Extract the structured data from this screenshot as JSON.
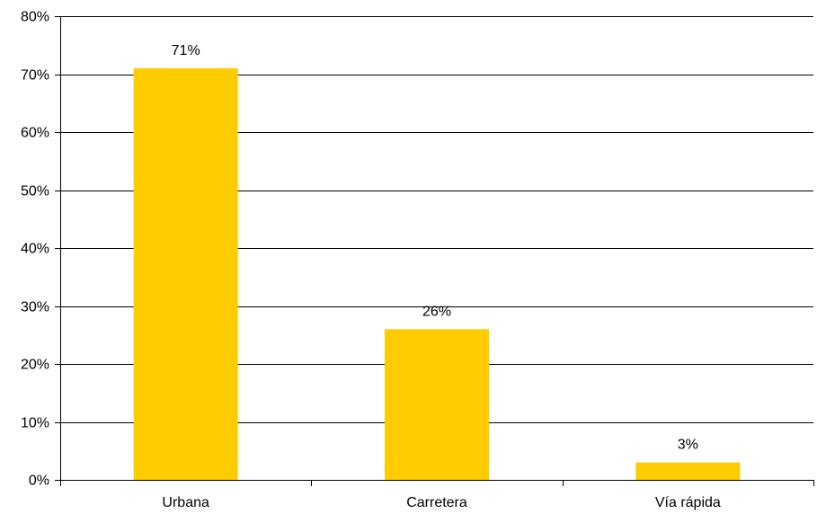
{
  "chart_data": {
    "type": "bar",
    "categories": [
      "Urbana",
      "Carretera",
      "Vía rápida"
    ],
    "values": [
      71,
      26,
      3
    ],
    "data_labels": [
      "71%",
      "26%",
      "3%"
    ],
    "title": "",
    "xlabel": "",
    "ylabel": "",
    "ylim": [
      0,
      80
    ],
    "yticks": [
      0,
      10,
      20,
      30,
      40,
      50,
      60,
      70,
      80
    ],
    "ytick_labels": [
      "0%",
      "10%",
      "20%",
      "30%",
      "40%",
      "50%",
      "60%",
      "70%",
      "80%"
    ],
    "grid": true,
    "legend": "none",
    "colors": {
      "bar": "#FFCC00",
      "grid": "#000000",
      "axis": "#000000"
    }
  }
}
